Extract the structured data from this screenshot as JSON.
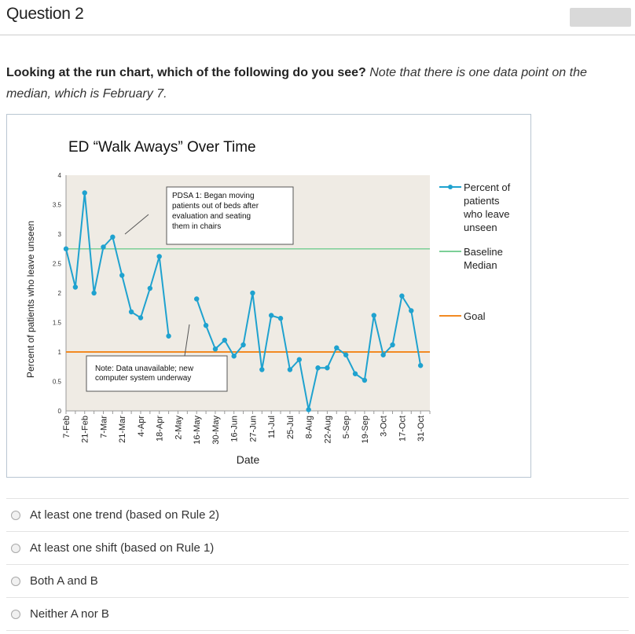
{
  "question": {
    "title": "Question 2",
    "prompt_bold": "Looking at the run chart, which of the following do you see?",
    "prompt_italic": "Note that there is one data point on the median, which is February 7."
  },
  "colors": {
    "series": "#1fa2cf",
    "median": "#7ccf97",
    "goal": "#f28a22",
    "plot_bg": "#efebe4"
  },
  "chart_data": {
    "type": "line",
    "title": "ED “Walk Aways” Over Time",
    "xlabel": "Date",
    "ylabel": "Percent of patients who leave unseen",
    "ylim": [
      0,
      4
    ],
    "yticks": [
      "0",
      "0.5",
      "1",
      "1.5",
      "2",
      "2.5",
      "3",
      "3.5",
      "4"
    ],
    "categories": [
      "7-Feb",
      "21-Feb",
      "7-Mar",
      "21-Mar",
      "4-Apr",
      "18-Apr",
      "2-May",
      "16-May",
      "30-May",
      "16-Jun",
      "27-Jun",
      "11-Jul",
      "25-Jul",
      "8-Aug",
      "22-Aug",
      "5-Sep",
      "19-Sep",
      "3-Oct",
      "17-Oct",
      "31-Oct"
    ],
    "x": [
      0,
      0.5,
      1,
      1.5,
      2,
      2.5,
      3,
      3.5,
      4,
      4.5,
      5,
      5.5,
      6,
      6.5,
      7,
      7.5,
      8,
      8.5,
      9,
      9.5,
      10,
      10.5,
      11,
      11.5,
      12,
      12.5,
      13,
      13.5,
      14,
      14.5,
      15,
      15.5,
      16,
      16.5,
      17,
      17.5,
      18,
      18.5,
      19,
      19.5
    ],
    "series": [
      {
        "name": "Percent of patients who leave unseen",
        "values": [
          2.75,
          2.1,
          3.7,
          2.0,
          2.78,
          2.95,
          2.3,
          1.68,
          1.58,
          2.08,
          2.62,
          1.27,
          null,
          null,
          1.9,
          1.45,
          1.05,
          1.2,
          0.93,
          1.12,
          2.0,
          0.7,
          1.62,
          1.57,
          0.7,
          0.87,
          0.02,
          0.73,
          0.73,
          1.07,
          0.95,
          0.63,
          0.52,
          1.62,
          0.95,
          1.12,
          1.95,
          1.7,
          0.77,
          null
        ]
      }
    ],
    "median": {
      "name": "Baseline Median",
      "value": 2.75
    },
    "goal": {
      "name": "Goal",
      "value": 1.0
    },
    "legend": [
      "Percent of patients who leave unseen",
      "Baseline Median",
      "Goal"
    ],
    "legend_position": "right",
    "annotations": [
      {
        "bold": "PDSA 1",
        "text": ": Began moving patients out of beds after evaluation and seating them in chairs"
      },
      {
        "bold": "",
        "text": "Note: Data unavailable; new computer system underway"
      }
    ]
  },
  "chart_text": {
    "legend_series_lines": [
      "Percent of",
      "patients",
      "who leave",
      "unseen"
    ],
    "legend_median_lines": [
      "Baseline",
      "Median"
    ],
    "legend_goal": "Goal",
    "pdsa_lines": [
      "PDSA 1: Began moving",
      "patients out of beds after",
      "evaluation and seating",
      "them in chairs"
    ],
    "note_lines": [
      "Note: Data unavailable; new",
      "computer system underway"
    ]
  },
  "answers": [
    {
      "label": "At least one trend (based on Rule 2)"
    },
    {
      "label": "At least one shift (based on Rule 1)"
    },
    {
      "label": "Both A and B"
    },
    {
      "label": "Neither A nor B"
    }
  ]
}
